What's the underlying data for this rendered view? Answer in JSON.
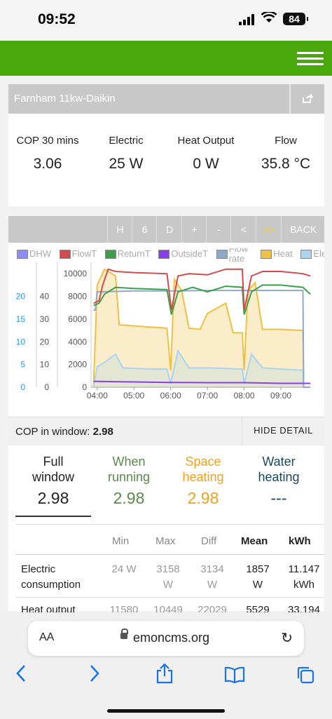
{
  "status": {
    "time": "09:52",
    "battery": "84"
  },
  "app": {
    "title": "Farnham 11kw-Daikin"
  },
  "stats": [
    {
      "label": "COP 30 mins",
      "value": "3.06"
    },
    {
      "label": "Electric",
      "value": "25  W"
    },
    {
      "label": "Heat Output",
      "value": "0  W"
    },
    {
      "label": "Flow",
      "value": "35.8  °C"
    }
  ],
  "toolbar": {
    "buttons": [
      "H",
      "6",
      "D",
      "+",
      "-",
      "<",
      ">>",
      "BACK"
    ]
  },
  "legend": [
    {
      "name": "DHW",
      "color": "#8c8cff"
    },
    {
      "name": "FlowT",
      "color": "#d44a4a"
    },
    {
      "name": "ReturnT",
      "color": "#3aa04a"
    },
    {
      "name": "OutsideT",
      "color": "#8a3ee6"
    },
    {
      "name": "Flow rate",
      "color": "#8fa9c8"
    },
    {
      "name": "Heat",
      "color": "#f0c040"
    },
    {
      "name": "Ele",
      "color": "#a9d4f2"
    }
  ],
  "chart_data": {
    "type": "line",
    "x_ticks": [
      "04:00",
      "05:00",
      "06:00",
      "07:00",
      "08:00",
      "09:00"
    ],
    "x_range": [
      "03:50",
      "09:48"
    ],
    "y_left_power_ticks": [
      "0",
      "2000",
      "4000",
      "6000",
      "8000",
      "10000"
    ],
    "y_left_temp_ticks": [
      "0",
      "10",
      "20",
      "30",
      "40"
    ],
    "y_left_flow_ticks": [
      "0",
      "5",
      "10",
      "15",
      "20"
    ],
    "y_power_range": [
      0,
      11000
    ],
    "y_temp_range": [
      0,
      55
    ],
    "series": [
      {
        "name": "FlowT",
        "axis": "temp",
        "points": [
          [
            3.9,
            37
          ],
          [
            4.05,
            38
          ],
          [
            4.15,
            45
          ],
          [
            4.3,
            52
          ],
          [
            4.5,
            51
          ],
          [
            5,
            50.5
          ],
          [
            5.9,
            50
          ],
          [
            6.02,
            34
          ],
          [
            6.2,
            49
          ],
          [
            6.5,
            50
          ],
          [
            7,
            49.5
          ],
          [
            7.5,
            52
          ],
          [
            7.95,
            52
          ],
          [
            8,
            34
          ],
          [
            8.2,
            49
          ],
          [
            8.5,
            51
          ],
          [
            9,
            51
          ],
          [
            9.6,
            50
          ],
          [
            9.8,
            49
          ]
        ]
      },
      {
        "name": "ReturnT",
        "axis": "temp",
        "points": [
          [
            3.9,
            36
          ],
          [
            4.05,
            37
          ],
          [
            4.2,
            41
          ],
          [
            4.5,
            44
          ],
          [
            5,
            43.5
          ],
          [
            5.9,
            43
          ],
          [
            6.02,
            32
          ],
          [
            6.2,
            42
          ],
          [
            6.6,
            44
          ],
          [
            7,
            42
          ],
          [
            7.5,
            44.5
          ],
          [
            7.95,
            44
          ],
          [
            8,
            32
          ],
          [
            8.2,
            42
          ],
          [
            8.5,
            45
          ],
          [
            9,
            45
          ],
          [
            9.6,
            44
          ],
          [
            9.8,
            41
          ]
        ]
      },
      {
        "name": "OutsideT",
        "axis": "temp",
        "points": [
          [
            3.9,
            2.6
          ],
          [
            5,
            2.3
          ],
          [
            6,
            2.1
          ],
          [
            7,
            2
          ],
          [
            8,
            2
          ],
          [
            9,
            1.7
          ],
          [
            9.8,
            1.7
          ]
        ]
      },
      {
        "name": "Flow rate",
        "axis": "flow",
        "points": [
          [
            3.9,
            17
          ],
          [
            3.95,
            17
          ],
          [
            4,
            21
          ],
          [
            5,
            21.2
          ],
          [
            6,
            21.2
          ],
          [
            7,
            21.3
          ],
          [
            8,
            21.3
          ],
          [
            9,
            21.3
          ],
          [
            9.6,
            21.3
          ],
          [
            9.62,
            0
          ],
          [
            9.8,
            0
          ]
        ]
      },
      {
        "name": "Heat",
        "axis": "power",
        "points": [
          [
            3.9,
            0
          ],
          [
            4.0,
            9000
          ],
          [
            4.2,
            10400
          ],
          [
            4.5,
            9800
          ],
          [
            4.6,
            5500
          ],
          [
            5,
            5400
          ],
          [
            5.9,
            5200
          ],
          [
            6.0,
            1500
          ],
          [
            6.1,
            9500
          ],
          [
            6.3,
            8500
          ],
          [
            6.5,
            5200
          ],
          [
            6.8,
            5100
          ],
          [
            7.0,
            6500
          ],
          [
            7.5,
            7400
          ],
          [
            7.7,
            4800
          ],
          [
            7.95,
            4800
          ],
          [
            8.0,
            1500
          ],
          [
            8.1,
            8500
          ],
          [
            8.3,
            9200
          ],
          [
            8.5,
            5100
          ],
          [
            9,
            5100
          ],
          [
            9.6,
            5000
          ],
          [
            9.62,
            0
          ],
          [
            9.8,
            0
          ]
        ]
      },
      {
        "name": "Ele",
        "axis": "power",
        "points": [
          [
            3.9,
            0
          ],
          [
            4.0,
            1800
          ],
          [
            4.2,
            2200
          ],
          [
            4.5,
            2900
          ],
          [
            4.7,
            1700
          ],
          [
            5.5,
            1600
          ],
          [
            5.9,
            1600
          ],
          [
            6.0,
            300
          ],
          [
            6.2,
            3200
          ],
          [
            6.5,
            1700
          ],
          [
            7,
            1700
          ],
          [
            7.5,
            1650
          ],
          [
            7.95,
            1600
          ],
          [
            8.0,
            300
          ],
          [
            8.2,
            2900
          ],
          [
            8.5,
            1700
          ],
          [
            9,
            1600
          ],
          [
            9.6,
            1500
          ],
          [
            9.62,
            0
          ],
          [
            9.8,
            0
          ]
        ]
      }
    ]
  },
  "cop_window": {
    "label": "COP in window:",
    "value": "2.98",
    "hide_label": "HIDE DETAIL"
  },
  "tabs": [
    {
      "label1": "Full",
      "label2": "window",
      "value": "2.98",
      "color": "#222222"
    },
    {
      "label1": "When",
      "label2": "running",
      "value": "2.98",
      "color": "#5a8a4a"
    },
    {
      "label1": "Space",
      "label2": "heating",
      "value": "2.98",
      "color": "#f0a020"
    },
    {
      "label1": "Water",
      "label2": "heating",
      "value": "---",
      "color": "#1a4a5a"
    }
  ],
  "table": {
    "headers": [
      "Min",
      "Max",
      "Diff",
      "Mean",
      "kWh"
    ],
    "rows": [
      {
        "label1": "Electric",
        "label2": "consumption",
        "min": "24 W",
        "max1": "3158",
        "max2": "W",
        "diff1": "3134",
        "diff2": "W",
        "mean1": "1857",
        "mean2": "W",
        "kwh1": "11.147",
        "kwh2": "kWh"
      },
      {
        "label1": "Heat output",
        "min": "11580",
        "max1": "10449",
        "diff1": "22029",
        "mean1": "5529",
        "kwh1": "33.194"
      }
    ]
  },
  "browser": {
    "aa": "AA",
    "url": "emoncms.org"
  }
}
